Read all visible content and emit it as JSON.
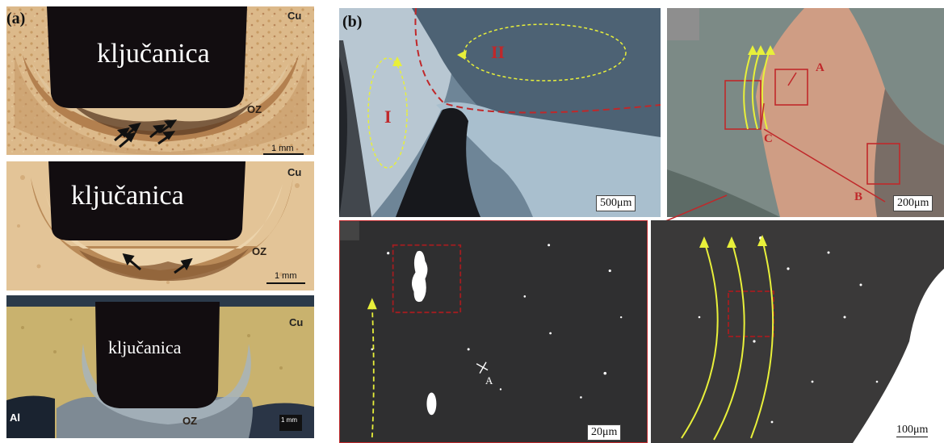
{
  "figure": {
    "panel_a_label": "(a)",
    "panel_b_label": "(b)",
    "left_images": [
      {
        "tool_label": "ključanica",
        "material_top": "Cu",
        "zone_label": "OZ",
        "scale_label": "1 mm"
      },
      {
        "tool_label": "ključanica",
        "material_top": "Cu",
        "zone_label": "OZ",
        "scale_label": "1 mm"
      },
      {
        "tool_label": "ključanica",
        "material_top": "Cu",
        "material_bottom": "Al",
        "zone_label": "OZ",
        "scale_label": "1 mm"
      }
    ],
    "micrographs": {
      "overview": {
        "region_1": "I",
        "region_2": "II",
        "scale_label": "500μm"
      },
      "interface": {
        "point_a": "A",
        "point_b": "B",
        "point_c": "C",
        "scale_label": "200μm"
      },
      "detail_left": {
        "point_a": "A",
        "scale_label": "20μm"
      },
      "detail_right": {
        "scale_label": "100μm"
      }
    },
    "colors": {
      "arrow_yellow": "#e8f03a",
      "annotation_red": "#c0282a",
      "tool_dark": "#120d10"
    }
  }
}
